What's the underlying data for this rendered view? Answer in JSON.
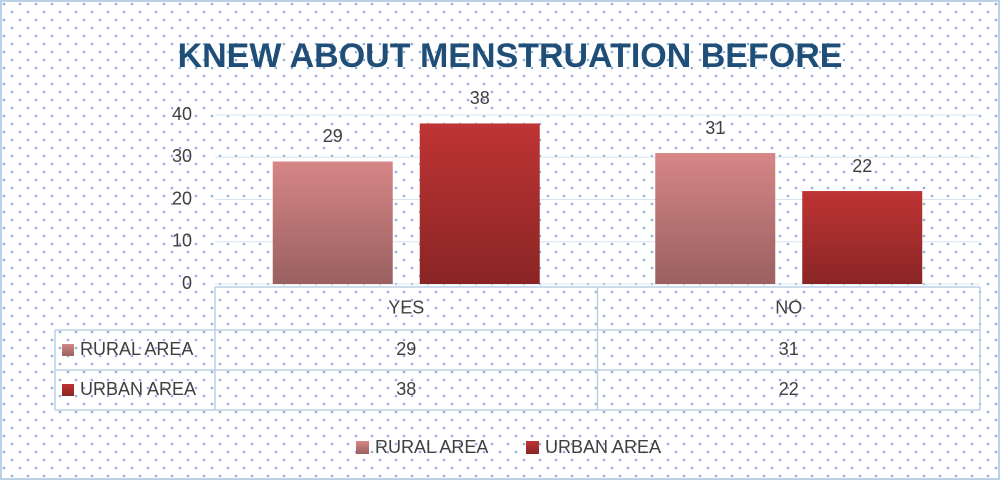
{
  "chart_data": {
    "type": "bar",
    "title": "KNEW ABOUT MENSTRUATION BEFORE",
    "categories": [
      "YES",
      "NO"
    ],
    "series": [
      {
        "name": "RURAL AREA",
        "color": "#d68686",
        "values": [
          29,
          31
        ]
      },
      {
        "name": "URBAN AREA",
        "color": "#bf3434",
        "values": [
          38,
          22
        ]
      }
    ],
    "ylim": [
      0,
      40
    ],
    "yticks": [
      0,
      10,
      20,
      30,
      40
    ],
    "grid": true,
    "legend": "bottom",
    "data_table": true
  }
}
